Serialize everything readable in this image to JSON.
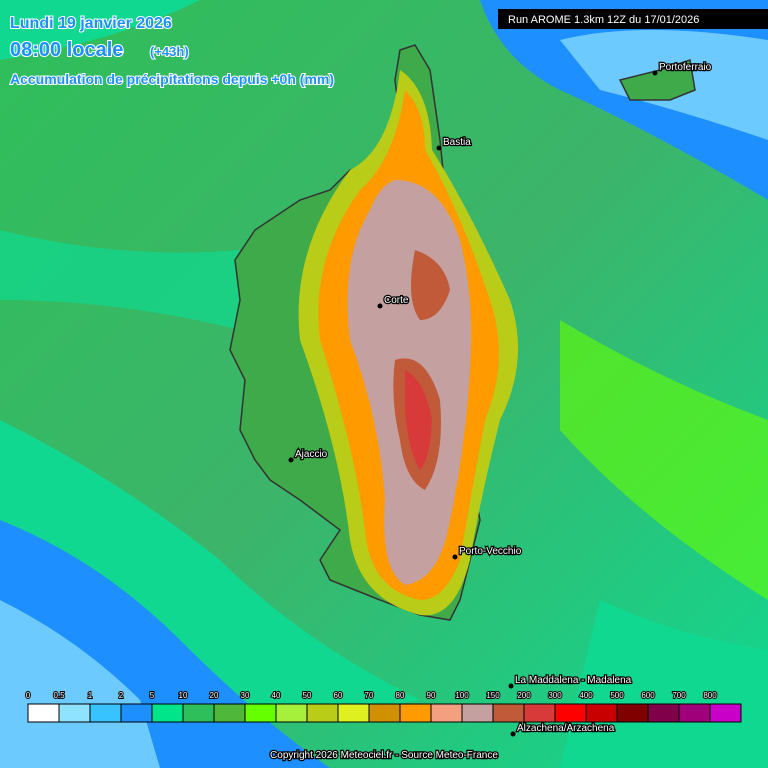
{
  "header": {
    "date": "Lundi 19 janvier 2026",
    "time": "08:00 locale",
    "offset": "(+43h)",
    "subtitle": "Accumulation de précipitations depuis +0h (mm)",
    "run": "Run AROME 1.3km 12Z du 17/01/2026"
  },
  "places": [
    {
      "label": "Portoferraio"
    },
    {
      "label": "Bastia"
    },
    {
      "label": "Corte"
    },
    {
      "label": "Ajaccio"
    },
    {
      "label": "Porto-Vecchio"
    },
    {
      "label": "La Maddalena - Madalena"
    },
    {
      "label": "Alzachena/Arzachena"
    }
  ],
  "legend": {
    "labels": [
      "0",
      "0.5",
      "1",
      "2",
      "5",
      "10",
      "20",
      "30",
      "40",
      "50",
      "60",
      "70",
      "80",
      "90",
      "100",
      "150",
      "200",
      "300",
      "400",
      "500",
      "600",
      "700",
      "800"
    ],
    "colors": [
      "#ffffff",
      "#8fe3ff",
      "#36c3ff",
      "#1e8fff",
      "#00e58a",
      "#2fbf5a",
      "#4fb83a",
      "#66ff00",
      "#a6ef3a",
      "#b8cc18",
      "#dff020",
      "#d09000",
      "#ff9a00",
      "#f4a080",
      "#c4a0a0",
      "#c05a38",
      "#d83a3a",
      "#ff0000",
      "#c80000",
      "#800000",
      "#80004a",
      "#a0007a",
      "#c800c8"
    ]
  },
  "footer": {
    "copyright": "Copyright 2026 Meteociel.fr - Source Meteo-France"
  }
}
